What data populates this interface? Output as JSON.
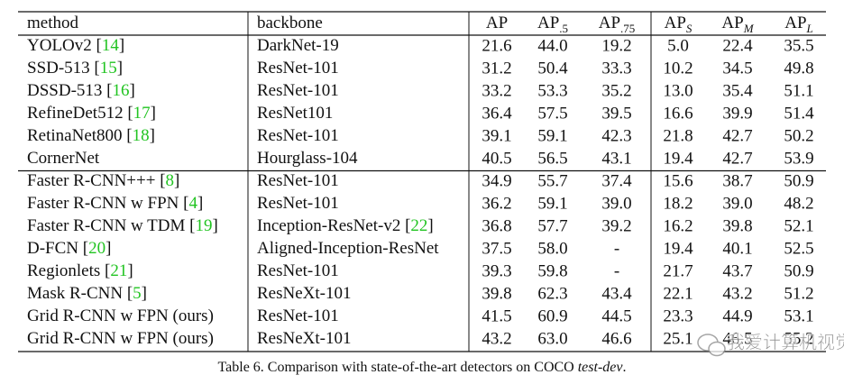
{
  "table": {
    "header": [
      [
        "method"
      ],
      [
        "backbone"
      ],
      [
        "AP"
      ],
      [
        "AP",
        ".5"
      ],
      [
        "AP",
        ".75"
      ],
      [
        "AP",
        "S"
      ],
      [
        "AP",
        "M"
      ],
      [
        "AP",
        "L"
      ]
    ],
    "groups": [
      [
        {
          "method": [
            "YOLOv2 [",
            "14",
            "]"
          ],
          "backbone": [
            "DarkNet-19"
          ],
          "values": [
            "21.6",
            "44.0",
            "19.2",
            "5.0",
            "22.4",
            "35.5"
          ]
        },
        {
          "method": [
            "SSD-513 [",
            "15",
            "]"
          ],
          "backbone": [
            "ResNet-101"
          ],
          "values": [
            "31.2",
            "50.4",
            "33.3",
            "10.2",
            "34.5",
            "49.8"
          ]
        },
        {
          "method": [
            "DSSD-513 [",
            "16",
            "]"
          ],
          "backbone": [
            "ResNet-101"
          ],
          "values": [
            "33.2",
            "53.3",
            "35.2",
            "13.0",
            "35.4",
            "51.1"
          ]
        },
        {
          "method": [
            "RefineDet512 [",
            "17",
            "]"
          ],
          "backbone": [
            "ResNet101"
          ],
          "values": [
            "36.4",
            "57.5",
            "39.5",
            "16.6",
            "39.9",
            "51.4"
          ]
        },
        {
          "method": [
            "RetinaNet800 [",
            "18",
            "]"
          ],
          "backbone": [
            "ResNet-101"
          ],
          "values": [
            "39.1",
            "59.1",
            "42.3",
            "21.8",
            "42.7",
            "50.2"
          ]
        },
        {
          "method": [
            "CornerNet"
          ],
          "backbone": [
            "Hourglass-104"
          ],
          "values": [
            "40.5",
            "56.5",
            "43.1",
            "19.4",
            "42.7",
            "53.9"
          ]
        }
      ],
      [
        {
          "method": [
            "Faster R-CNN+++ [",
            "8",
            "]"
          ],
          "backbone": [
            "ResNet-101"
          ],
          "values": [
            "34.9",
            "55.7",
            "37.4",
            "15.6",
            "38.7",
            "50.9"
          ]
        },
        {
          "method": [
            "Faster R-CNN w FPN [",
            "4",
            "]"
          ],
          "backbone": [
            "ResNet-101"
          ],
          "values": [
            "36.2",
            "59.1",
            "39.0",
            "18.2",
            "39.0",
            "48.2"
          ]
        },
        {
          "method": [
            "Faster R-CNN w TDM [",
            "19",
            "]"
          ],
          "backbone": [
            "Inception-ResNet-v2 [",
            "22",
            "]"
          ],
          "values": [
            "36.8",
            "57.7",
            "39.2",
            "16.2",
            "39.8",
            "52.1"
          ]
        },
        {
          "method": [
            "D-FCN [",
            "20",
            "]"
          ],
          "backbone": [
            "Aligned-Inception-ResNet"
          ],
          "values": [
            "37.5",
            "58.0",
            "-",
            "19.4",
            "40.1",
            "52.5"
          ]
        },
        {
          "method": [
            "Regionlets [",
            "21",
            "]"
          ],
          "backbone": [
            "ResNet-101"
          ],
          "values": [
            "39.3",
            "59.8",
            "-",
            "21.7",
            "43.7",
            "50.9"
          ]
        },
        {
          "method": [
            "Mask R-CNN [",
            "5",
            "]"
          ],
          "backbone": [
            "ResNeXt-101"
          ],
          "values": [
            "39.8",
            "62.3",
            "43.4",
            "22.1",
            "43.2",
            "51.2"
          ]
        },
        {
          "method": [
            "Grid R-CNN w FPN (ours)"
          ],
          "backbone": [
            "ResNet-101"
          ],
          "values": [
            "41.5",
            "60.9",
            "44.5",
            "23.3",
            "44.9",
            "53.1"
          ]
        },
        {
          "method": [
            "Grid R-CNN w FPN (ours)"
          ],
          "backbone": [
            "ResNeXt-101"
          ],
          "values": [
            "43.2",
            "63.0",
            "46.6",
            "25.1",
            "46.5",
            "55.2"
          ]
        }
      ]
    ],
    "caption": [
      "Table 6. Comparison with state-of-the-art detectors on COCO ",
      "test-dev",
      "."
    ]
  },
  "watermark": "我爱计算机视觉"
}
